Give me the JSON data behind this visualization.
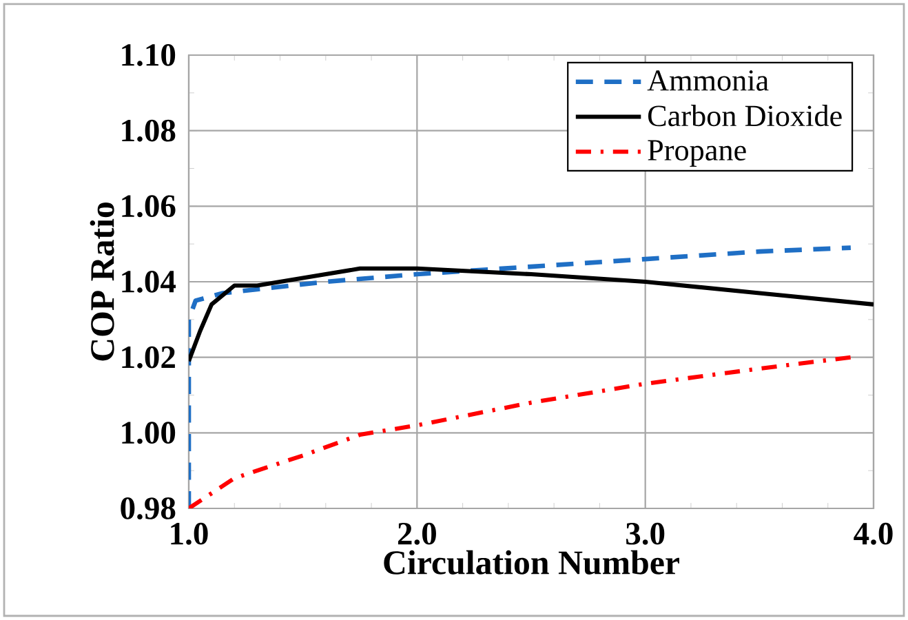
{
  "chart_data": {
    "type": "line",
    "xlabel": "Circulation Number",
    "ylabel": "COP Ratio",
    "xlim": [
      1.0,
      4.0
    ],
    "xticks": [
      {
        "value": 1,
        "label": "1.0"
      },
      {
        "value": 2,
        "label": "2.0"
      },
      {
        "value": 3,
        "label": "3.0"
      },
      {
        "value": 4,
        "label": "4.0"
      }
    ],
    "ylim": [
      0.98,
      1.1
    ],
    "yticks": [
      {
        "value": 0.98,
        "label": "0.98"
      },
      {
        "value": 1.0,
        "label": "1.00"
      },
      {
        "value": 1.02,
        "label": "1.02"
      },
      {
        "value": 1.04,
        "label": "1.04"
      },
      {
        "value": 1.06,
        "label": "1.06"
      },
      {
        "value": 1.08,
        "label": "1.08"
      },
      {
        "value": 1.1,
        "label": "1.10"
      }
    ],
    "grid": true,
    "legend": "top right",
    "series": [
      {
        "name": "Ammonia",
        "color": "#1f6fc5",
        "line_style": "dashed",
        "x": [
          1.0,
          1.0,
          1.03,
          1.15,
          1.3,
          1.6,
          2.0,
          2.5,
          3.0,
          3.5,
          3.9
        ],
        "values": [
          0.98,
          1.03,
          1.035,
          1.037,
          1.038,
          1.04,
          1.042,
          1.044,
          1.046,
          1.048,
          1.049
        ]
      },
      {
        "name": "Carbon Dioxide",
        "color": "#000000",
        "line_style": "solid",
        "x": [
          1.0,
          1.05,
          1.1,
          1.2,
          1.3,
          1.5,
          1.75,
          2.0,
          2.5,
          3.0,
          3.5,
          4.0
        ],
        "values": [
          1.019,
          1.027,
          1.034,
          1.039,
          1.039,
          1.041,
          1.0435,
          1.0435,
          1.042,
          1.04,
          1.037,
          1.034
        ]
      },
      {
        "name": "Propane",
        "color": "#ff0000",
        "line_style": "dashdotted",
        "x": [
          1.0,
          1.2,
          1.5,
          1.75,
          2.0,
          2.5,
          3.0,
          3.5,
          3.9
        ],
        "values": [
          0.98,
          0.988,
          0.994,
          0.9995,
          1.002,
          1.008,
          1.013,
          1.017,
          1.02
        ]
      }
    ]
  }
}
